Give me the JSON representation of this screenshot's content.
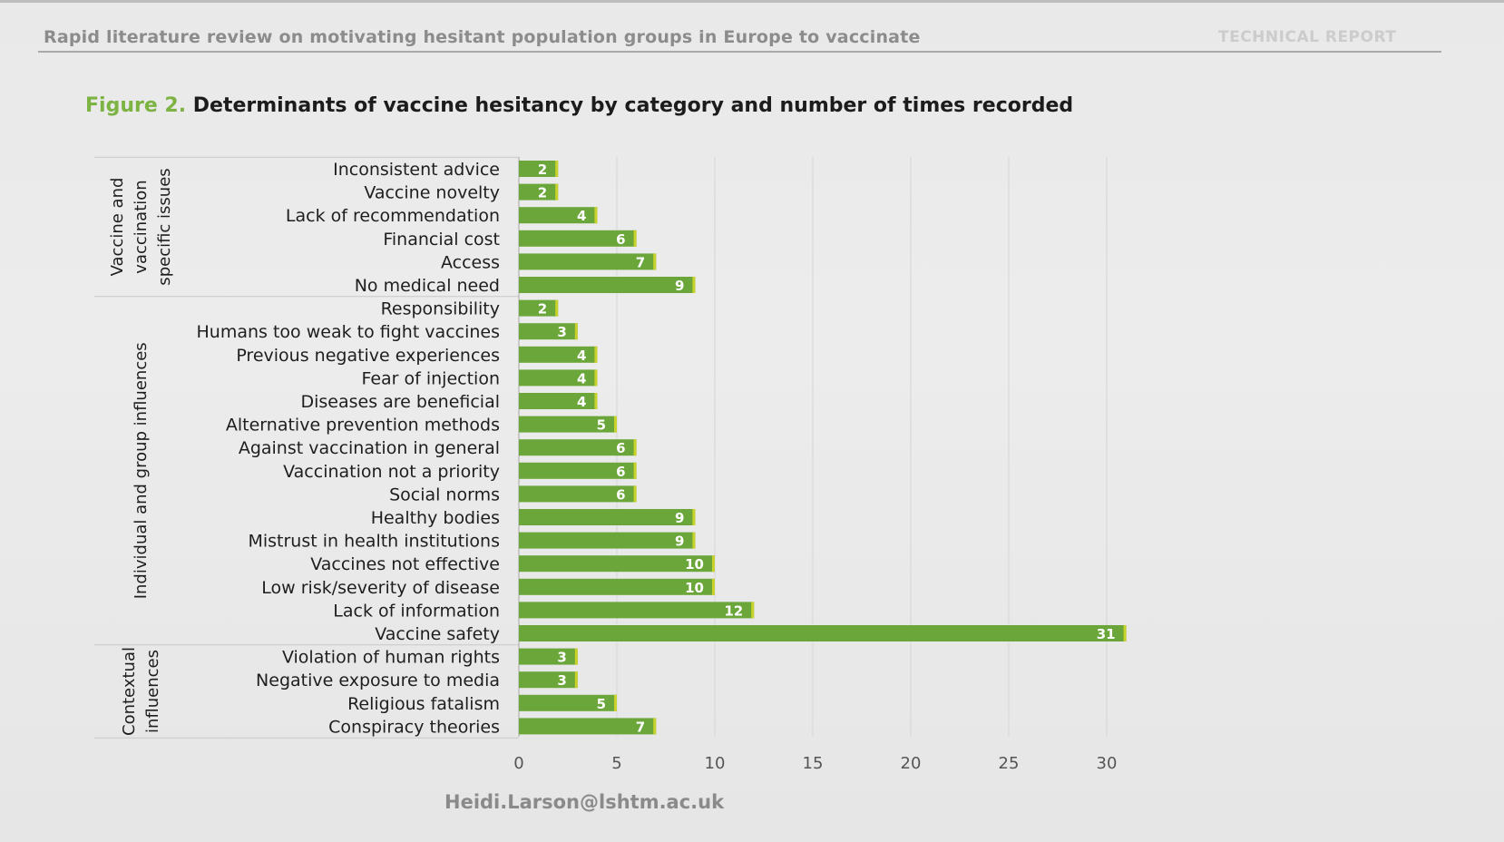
{
  "header": {
    "title": "Rapid literature review on motivating hesitant population groups in Europe to vaccinate",
    "tag": "TECHNICAL REPORT"
  },
  "figure": {
    "label": "Figure 2.",
    "title": "Determinants of vaccine hesitancy by category and number of times recorded"
  },
  "footer": {
    "email": "Heidi.Larson@lshtm.ac.uk"
  },
  "colors": {
    "bar": "#6aa63a",
    "bar_edge": "#c9d22a",
    "fig_label": "#7cb342"
  },
  "chart_data": {
    "type": "bar",
    "orientation": "horizontal",
    "title": "Determinants of vaccine hesitancy by category and number of times recorded",
    "xlim": [
      0,
      30
    ],
    "xticks": [
      0,
      5,
      10,
      15,
      20,
      25,
      30
    ],
    "grid": "vertical",
    "groups": [
      {
        "name": "Vaccine and vaccination specific issues",
        "name_lines": [
          "Vaccine and",
          "vaccination",
          "specific issues"
        ],
        "categories": [
          "Inconsistent advice",
          "Vaccine novelty",
          "Lack of recommendation",
          "Financial cost",
          "Access",
          "No medical need"
        ],
        "values": [
          2,
          2,
          4,
          6,
          7,
          9
        ]
      },
      {
        "name": "Individual and group influences",
        "name_lines": [
          "Individual and group influences"
        ],
        "categories": [
          "Responsibility",
          "Humans too weak to fight vaccines",
          "Previous negative experiences",
          "Fear of injection",
          "Diseases are beneficial",
          "Alternative prevention methods",
          "Against vaccination in general",
          "Vaccination not a priority",
          "Social norms",
          "Healthy bodies",
          "Mistrust in health institutions",
          "Vaccines not effective",
          "Low risk/severity of disease",
          "Lack of information",
          "Vaccine safety"
        ],
        "values": [
          2,
          3,
          4,
          4,
          4,
          5,
          6,
          6,
          6,
          9,
          9,
          10,
          10,
          12,
          31
        ]
      },
      {
        "name": "Contextual influences",
        "name_lines": [
          "Contextual",
          "influences"
        ],
        "categories": [
          "Violation of human rights",
          "Negative exposure to media",
          "Religious fatalism",
          "Conspiracy theories"
        ],
        "values": [
          3,
          3,
          5,
          7
        ]
      }
    ]
  }
}
